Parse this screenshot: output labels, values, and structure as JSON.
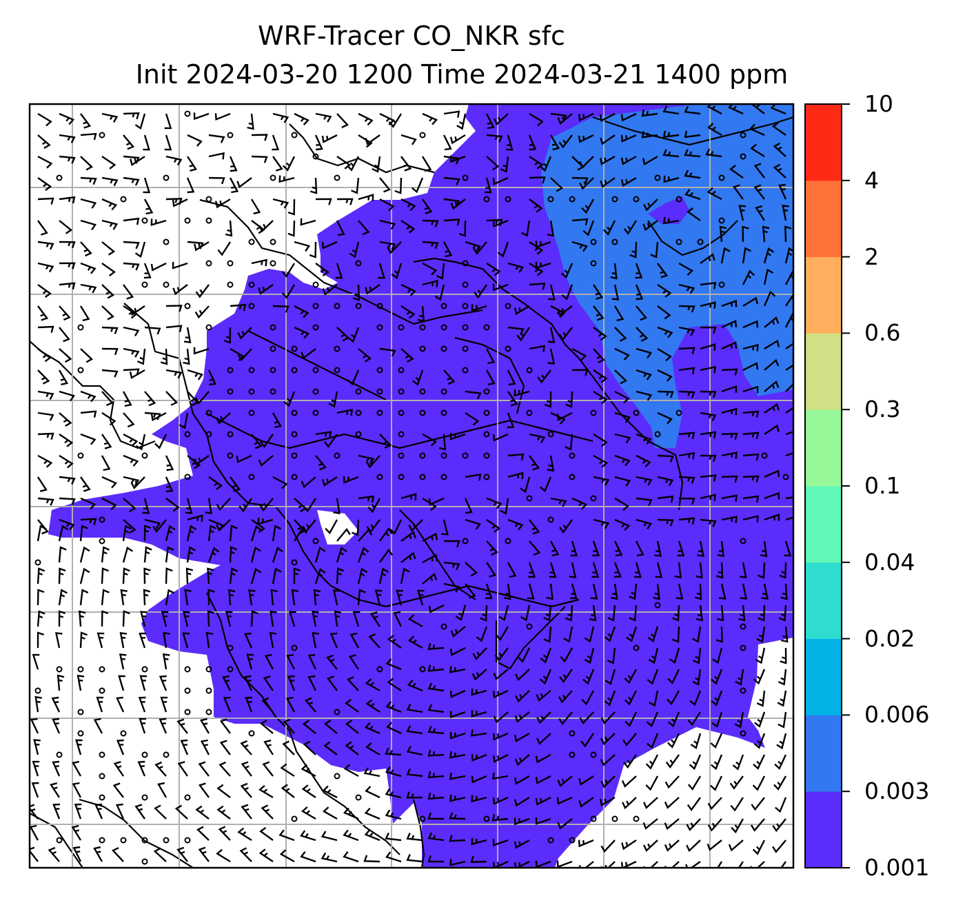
{
  "title": {
    "line1": "WRF-Tracer CO_NKR sfc",
    "line2": "Init 2024-03-20 1200 Time 2024-03-21 1400 ppm"
  },
  "map": {
    "gridlines": true,
    "overlays": [
      "wind-barbs",
      "coastlines",
      "borders"
    ],
    "fill_colors": {
      "level_0_001": "#5b2cfb",
      "level_0_003": "#3278f0"
    }
  },
  "colorbar": {
    "placement": "right",
    "ticks": [
      "0.001",
      "0.003",
      "0.006",
      "0.02",
      "0.04",
      "0.1",
      "0.3",
      "0.6",
      "2",
      "4",
      "10"
    ],
    "colors": [
      "#5b2cfb",
      "#3278f0",
      "#00b2e6",
      "#2edcd0",
      "#5ff8b6",
      "#97f89a",
      "#cfe184",
      "#ffae5e",
      "#ff7338",
      "#ff2a16"
    ]
  }
}
